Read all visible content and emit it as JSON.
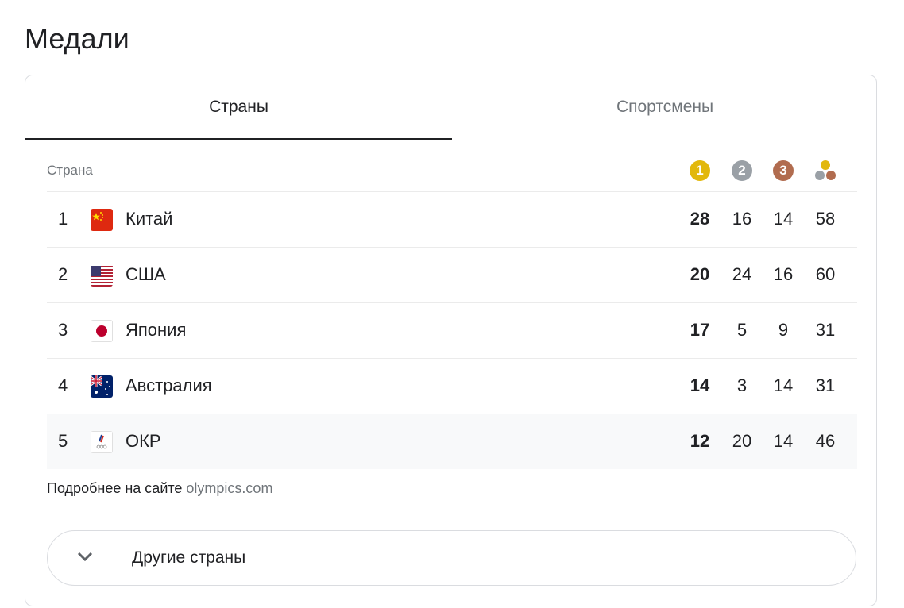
{
  "title": "Медали",
  "tabs": [
    {
      "label": "Страны",
      "active": true
    },
    {
      "label": "Спортсмены",
      "active": false
    }
  ],
  "header": {
    "country_label": "Страна",
    "gold": "1",
    "silver": "2",
    "bronze": "3",
    "colors": {
      "gold": "#e2b80c",
      "silver": "#9aa0a6",
      "bronze": "#b16c4f"
    }
  },
  "rows": [
    {
      "rank": "1",
      "country": "Китай",
      "flag": "china-flag",
      "gold": "28",
      "silver": "16",
      "bronze": "14",
      "total": "58"
    },
    {
      "rank": "2",
      "country": "США",
      "flag": "usa-flag",
      "gold": "20",
      "silver": "24",
      "bronze": "16",
      "total": "60"
    },
    {
      "rank": "3",
      "country": "Япония",
      "flag": "japan-flag",
      "gold": "17",
      "silver": "5",
      "bronze": "9",
      "total": "31"
    },
    {
      "rank": "4",
      "country": "Австралия",
      "flag": "australia-flag",
      "gold": "14",
      "silver": "3",
      "bronze": "14",
      "total": "31"
    },
    {
      "rank": "5",
      "country": "ОКР",
      "flag": "roc-flag",
      "gold": "12",
      "silver": "20",
      "bronze": "14",
      "total": "46"
    }
  ],
  "footer": {
    "text": "Подробнее на сайте ",
    "link": "olympics.com"
  },
  "more_button": {
    "label": "Другие страны"
  }
}
